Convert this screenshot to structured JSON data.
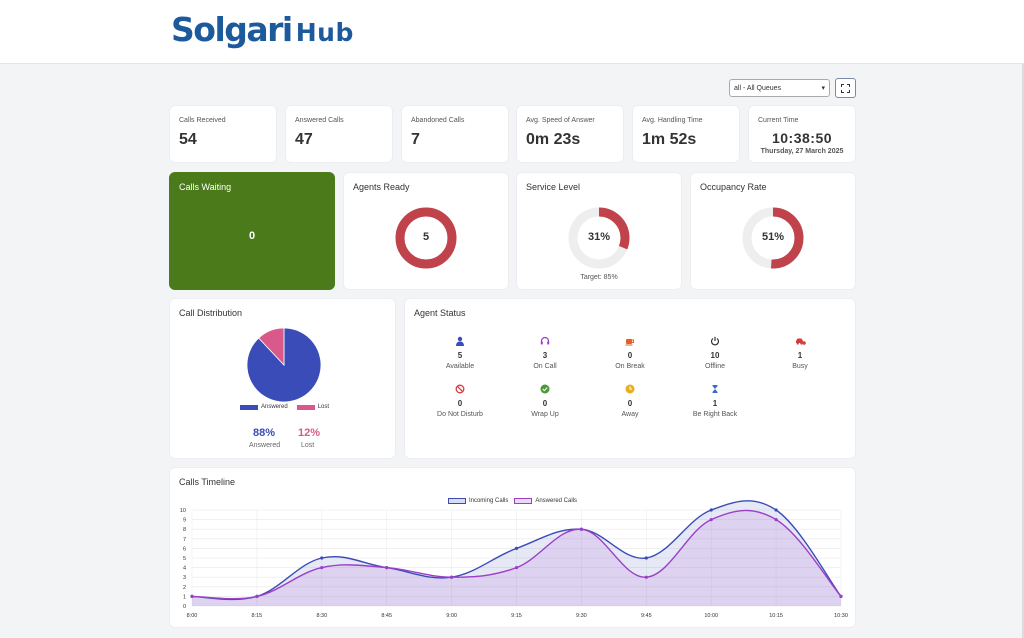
{
  "header": {
    "logo_part1": "Solgari",
    "logo_part2": "Hub"
  },
  "controls": {
    "queue_selected": "all - All Queues"
  },
  "kpis": [
    {
      "label": "Calls Received",
      "value": "54"
    },
    {
      "label": "Answered Calls",
      "value": "47"
    },
    {
      "label": "Abandoned Calls",
      "value": "7"
    },
    {
      "label": "Avg. Speed of Answer",
      "value": "0m 23s"
    },
    {
      "label": "Avg. Handling Time",
      "value": "1m 52s"
    }
  ],
  "current_time": {
    "label": "Current Time",
    "time": "10:38:50",
    "date": "Thursday, 27 March 2025"
  },
  "gauges": {
    "calls_waiting": {
      "title": "Calls Waiting",
      "value": "0",
      "color": "#4a7a1a"
    },
    "agents_ready": {
      "title": "Agents Ready",
      "value": "5",
      "fraction": 1.0,
      "color": "#c0424a"
    },
    "service_level": {
      "title": "Service Level",
      "value": "31%",
      "fraction": 0.31,
      "target": "Target: 85%",
      "color": "#c0424a"
    },
    "occupancy_rate": {
      "title": "Occupancy Rate",
      "value": "51%",
      "fraction": 0.51,
      "color": "#c0424a"
    }
  },
  "call_distribution": {
    "title": "Call Distribution",
    "legend_answered": "Answered",
    "legend_lost": "Lost",
    "answered_pct": "88%",
    "lost_pct": "12%",
    "answered_label": "Answered",
    "lost_label": "Lost",
    "answered_color": "#3a4cb8",
    "lost_color": "#d95a8a"
  },
  "agent_status": {
    "title": "Agent Status",
    "items": [
      {
        "label": "Available",
        "count": "5",
        "icon": "user-icon",
        "color": "#3a4cb8"
      },
      {
        "label": "On Call",
        "count": "3",
        "icon": "headset-icon",
        "color": "#9b3fc7"
      },
      {
        "label": "On Break",
        "count": "0",
        "icon": "coffee-icon",
        "color": "#e0602b"
      },
      {
        "label": "Offline",
        "count": "10",
        "icon": "power-icon",
        "color": "#333333"
      },
      {
        "label": "Busy",
        "count": "1",
        "icon": "busy-car-icon",
        "color": "#d83a3a"
      },
      {
        "label": "Do Not Disturb",
        "count": "0",
        "icon": "ban-icon",
        "color": "#d83a3a"
      },
      {
        "label": "Wrap Up",
        "count": "0",
        "icon": "check-circle-icon",
        "color": "#4a9a3a"
      },
      {
        "label": "Away",
        "count": "0",
        "icon": "clock-circle-icon",
        "color": "#e8b020"
      },
      {
        "label": "Be Right Back",
        "count": "1",
        "icon": "hourglass-icon",
        "color": "#3a6bc8"
      }
    ]
  },
  "timeline": {
    "title": "Calls Timeline",
    "legend_incoming": "Incoming Calls",
    "legend_answered": "Answered Calls"
  },
  "chart_data": {
    "type": "line",
    "x": [
      "8:00",
      "8:15",
      "8:30",
      "8:45",
      "9:00",
      "9:15",
      "9:30",
      "9:45",
      "10:00",
      "10:15",
      "10:30"
    ],
    "series": [
      {
        "name": "Incoming Calls",
        "values": [
          1,
          1,
          5,
          4,
          3,
          6,
          8,
          5,
          10,
          10,
          1
        ],
        "color": "#3a4cb8"
      },
      {
        "name": "Answered Calls",
        "values": [
          1,
          1,
          4,
          4,
          3,
          4,
          8,
          3,
          9,
          9,
          1
        ],
        "color": "#9b3fc7"
      }
    ],
    "ylim": [
      0,
      10
    ],
    "yticks": [
      0,
      1,
      2,
      3,
      4,
      5,
      6,
      7,
      8,
      9,
      10
    ],
    "grid": true,
    "legend_position": "top"
  }
}
